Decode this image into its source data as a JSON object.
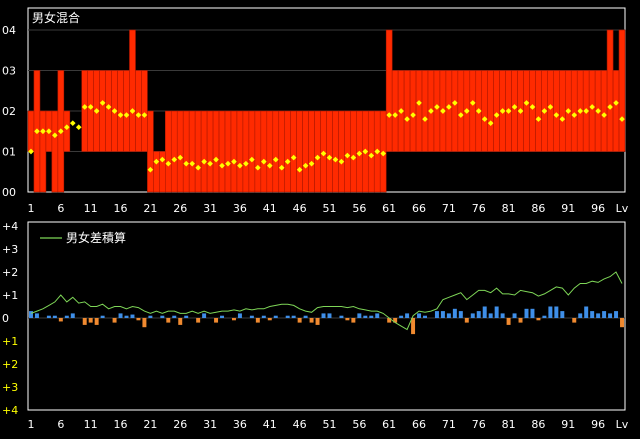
{
  "chart_data": [
    {
      "type": "bar",
      "title": "男女混合",
      "y_ticks": [
        "00",
        "01",
        "02",
        "03",
        "04"
      ],
      "x_ticks": [
        "1",
        "6",
        "11",
        "16",
        "21",
        "26",
        "31",
        "36",
        "41",
        "46",
        "51",
        "56",
        "61",
        "66",
        "71",
        "76",
        "81",
        "86",
        "91",
        "96"
      ],
      "x_end_label": "Lv",
      "bar_color": "#ff2a00",
      "dot_color": "#ffff00",
      "ylim": [
        0,
        4
      ],
      "bar_values": [
        2,
        3,
        2,
        2,
        2,
        3,
        2,
        0,
        0,
        3,
        3,
        3,
        3,
        3,
        3,
        3,
        3,
        4,
        3,
        3,
        3,
        3,
        3,
        3,
        2,
        1,
        1,
        2,
        2,
        2,
        2,
        2,
        2,
        2,
        2,
        2,
        2,
        2,
        2,
        2,
        2,
        2,
        2,
        2,
        2,
        2,
        2,
        2,
        2,
        2,
        2,
        2,
        2,
        2,
        2,
        2,
        2,
        2,
        2,
        2,
        3,
        3,
        3,
        3,
        3,
        3,
        3,
        3,
        3,
        3,
        3,
        3,
        3,
        3,
        3,
        3,
        3,
        3,
        3,
        3,
        3,
        3,
        3,
        3,
        3,
        3,
        3,
        3,
        3,
        3,
        3,
        3,
        3,
        3,
        3,
        3,
        3,
        3,
        3,
        3
      ],
      "bar_floors": [
        1,
        0,
        0,
        1,
        0,
        0,
        1,
        0,
        0,
        1,
        1,
        1,
        1,
        1,
        1,
        1,
        1,
        1,
        1,
        1,
        0,
        0,
        0,
        0,
        0,
        0,
        0,
        0,
        0,
        0,
        0,
        0,
        0,
        0,
        0,
        0,
        0,
        0,
        0,
        0,
        0,
        0,
        0,
        0,
        0,
        0,
        0,
        0,
        0,
        0,
        0,
        0,
        0,
        0,
        0,
        0,
        0,
        0,
        0,
        0,
        1,
        1,
        1,
        1,
        1,
        1,
        1,
        1,
        1,
        1,
        1,
        1,
        1,
        1,
        1,
        1,
        1,
        1,
        1,
        1,
        1,
        1,
        1,
        1,
        1,
        1,
        1,
        1,
        1,
        1,
        1,
        1,
        1,
        1,
        1,
        1,
        1,
        1,
        1,
        1
      ],
      "bar_tops": [
        2,
        3,
        2,
        2,
        2,
        3,
        2,
        0,
        0,
        3,
        3,
        3,
        3,
        3,
        3,
        3,
        3,
        4,
        3,
        3,
        2,
        1,
        1,
        2,
        2,
        2,
        2,
        2,
        2,
        2,
        2,
        2,
        2,
        2,
        2,
        2,
        2,
        2,
        2,
        2,
        2,
        2,
        2,
        2,
        2,
        2,
        2,
        2,
        2,
        2,
        2,
        2,
        2,
        2,
        2,
        2,
        2,
        2,
        2,
        2,
        4,
        3,
        3,
        3,
        3,
        3,
        3,
        3,
        3,
        3,
        3,
        3,
        3,
        3,
        3,
        3,
        3,
        3,
        3,
        3,
        3,
        3,
        3,
        3,
        3,
        3,
        3,
        3,
        3,
        3,
        3,
        3,
        3,
        3,
        3,
        3,
        3,
        4,
        3,
        4
      ],
      "dot_values": [
        1.0,
        1.5,
        1.5,
        1.5,
        1.4,
        1.5,
        1.6,
        1.7,
        1.6,
        2.1,
        2.1,
        2.0,
        2.2,
        2.1,
        2.0,
        1.9,
        1.9,
        2.0,
        1.9,
        1.9,
        0.55,
        0.75,
        0.8,
        0.7,
        0.8,
        0.85,
        0.7,
        0.7,
        0.6,
        0.75,
        0.7,
        0.8,
        0.65,
        0.7,
        0.75,
        0.65,
        0.7,
        0.8,
        0.6,
        0.75,
        0.65,
        0.8,
        0.6,
        0.75,
        0.85,
        0.55,
        0.65,
        0.7,
        0.85,
        0.95,
        0.85,
        0.8,
        0.75,
        0.9,
        0.85,
        0.95,
        1.0,
        0.9,
        1.0,
        0.95,
        1.9,
        1.9,
        2.0,
        1.8,
        1.9,
        2.2,
        1.8,
        2.0,
        2.1,
        2.0,
        2.1,
        2.2,
        1.9,
        2.0,
        2.2,
        2.0,
        1.8,
        1.7,
        1.9,
        2.0,
        2.0,
        2.1,
        2.0,
        2.2,
        2.1,
        1.8,
        2.0,
        2.1,
        1.9,
        1.8,
        2.0,
        1.9,
        2.0,
        2.0,
        2.1,
        2.0,
        1.9,
        2.1,
        2.2,
        1.8
      ]
    },
    {
      "type": "bar",
      "title": "男女差積算",
      "y_ticks": [
        "+4",
        "+3",
        "+2",
        "+1",
        "0",
        "+1",
        "+2",
        "+3",
        "+4"
      ],
      "x_ticks": [
        "1",
        "6",
        "11",
        "16",
        "21",
        "26",
        "31",
        "36",
        "41",
        "46",
        "51",
        "56",
        "61",
        "66",
        "71",
        "76",
        "81",
        "86",
        "91",
        "96"
      ],
      "x_end_label": "Lv",
      "ylim": [
        -4,
        4
      ],
      "pos_color": "#3f8fe8",
      "neg_color": "#f08a30",
      "line_color": "#7ed657",
      "bar_values": [
        0.3,
        0.2,
        0.0,
        0.1,
        0.1,
        -0.15,
        0.1,
        0.2,
        0.0,
        -0.3,
        -0.2,
        -0.3,
        0.1,
        0.0,
        -0.2,
        0.2,
        0.1,
        0.15,
        -0.1,
        -0.4,
        0.1,
        0.0,
        0.1,
        -0.2,
        0.1,
        -0.3,
        0.1,
        0.0,
        -0.2,
        0.2,
        0.0,
        -0.2,
        0.1,
        0.0,
        -0.1,
        0.2,
        0.0,
        0.1,
        -0.2,
        0.1,
        -0.1,
        0.1,
        0.0,
        0.1,
        0.1,
        -0.2,
        0.1,
        -0.2,
        -0.3,
        0.2,
        0.2,
        0.0,
        0.1,
        -0.1,
        -0.2,
        0.2,
        0.1,
        0.1,
        0.2,
        0.0,
        -0.2,
        -0.2,
        0.1,
        0.2,
        -0.7,
        0.2,
        0.1,
        0.0,
        0.3,
        0.3,
        0.2,
        0.4,
        0.3,
        -0.2,
        0.2,
        0.3,
        0.5,
        0.2,
        0.5,
        0.2,
        -0.3,
        0.2,
        -0.2,
        0.4,
        0.4,
        -0.1,
        0.1,
        0.5,
        0.5,
        0.3,
        0.0,
        -0.2,
        0.2,
        0.5,
        0.3,
        0.2,
        0.3,
        0.2,
        0.3,
        -0.4
      ],
      "line_values": [
        0.2,
        0.3,
        0.4,
        0.55,
        0.7,
        1.0,
        0.7,
        0.9,
        0.65,
        0.7,
        0.5,
        0.5,
        0.6,
        0.4,
        0.5,
        0.5,
        0.4,
        0.5,
        0.45,
        0.3,
        0.2,
        0.3,
        0.2,
        0.3,
        0.3,
        0.2,
        0.2,
        0.3,
        0.2,
        0.3,
        0.2,
        0.25,
        0.3,
        0.3,
        0.35,
        0.3,
        0.4,
        0.35,
        0.4,
        0.4,
        0.5,
        0.55,
        0.6,
        0.6,
        0.55,
        0.4,
        0.3,
        0.25,
        0.45,
        0.5,
        0.5,
        0.5,
        0.5,
        0.45,
        0.5,
        0.4,
        0.35,
        0.3,
        0.3,
        0.2,
        0.0,
        -0.2,
        -0.35,
        -0.5,
        0.1,
        0.3,
        0.25,
        0.3,
        0.4,
        0.8,
        0.9,
        1.0,
        1.1,
        0.8,
        1.0,
        1.2,
        1.2,
        1.1,
        1.3,
        1.05,
        1.05,
        1.0,
        1.2,
        1.15,
        1.1,
        0.95,
        1.05,
        1.2,
        1.35,
        1.3,
        1.0,
        1.3,
        1.5,
        1.5,
        1.6,
        1.55,
        1.7,
        1.8,
        2.0,
        1.5
      ],
      "legend": "男女差積算"
    }
  ]
}
